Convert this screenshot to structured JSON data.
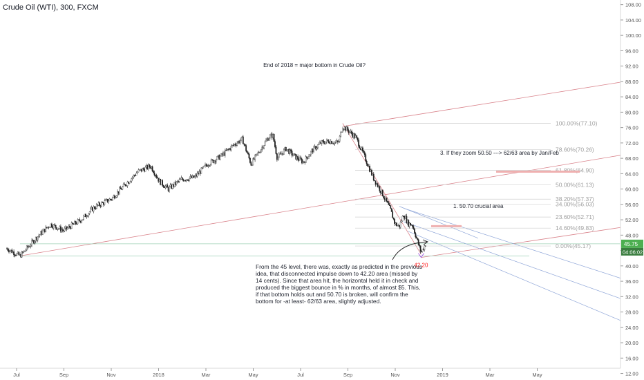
{
  "chart_data": {
    "type": "candlestick",
    "symbol_title": "Crude Oil (WTI), 300, FXCM",
    "y_axis_ticks": [
      108,
      104,
      100,
      96,
      92,
      88,
      84,
      80,
      76,
      72,
      68,
      64,
      60,
      56,
      52,
      48,
      44,
      40,
      36,
      32,
      28,
      24,
      20,
      16,
      12
    ],
    "ylim": [
      10.3,
      109.2
    ],
    "x_axis_ticks": [
      "Jul",
      "Sep",
      "Nov",
      "2018",
      "Mar",
      "May",
      "Jul",
      "Sep",
      "Nov",
      "2019",
      "Mar",
      "May"
    ],
    "price_profile": [
      [
        0,
        44.5
      ],
      [
        3,
        42.6
      ],
      [
        7,
        47.6
      ],
      [
        10,
        50.8
      ],
      [
        13,
        49.2
      ],
      [
        17,
        52.0
      ],
      [
        20,
        55.2
      ],
      [
        24,
        57.5
      ],
      [
        27,
        61.0
      ],
      [
        30,
        64.5
      ],
      [
        33,
        66.0
      ],
      [
        35,
        62.0
      ],
      [
        37,
        60.0
      ],
      [
        40,
        62.5
      ],
      [
        43,
        63.0
      ],
      [
        46,
        66.5
      ],
      [
        49,
        68.5
      ],
      [
        52,
        71.5
      ],
      [
        54,
        73.0
      ],
      [
        56,
        66.5
      ],
      [
        58,
        70.0
      ],
      [
        60,
        73.5
      ],
      [
        61,
        74.0
      ],
      [
        62,
        68.0
      ],
      [
        64,
        70.5
      ],
      [
        66,
        68.5
      ],
      [
        68,
        67.0
      ],
      [
        70,
        70.0
      ],
      [
        72,
        72.0
      ],
      [
        74,
        72.5
      ],
      [
        76,
        72.0
      ],
      [
        77,
        76.3
      ],
      [
        78,
        75.5
      ],
      [
        80,
        73.5
      ],
      [
        82,
        68.5
      ],
      [
        84,
        63.0
      ],
      [
        86,
        59.0
      ],
      [
        88,
        54.5
      ],
      [
        89,
        51.0
      ],
      [
        90,
        50.2
      ],
      [
        91,
        53.5
      ],
      [
        92,
        51.0
      ],
      [
        93,
        50.7
      ],
      [
        94,
        47.0
      ],
      [
        95,
        43.5
      ],
      [
        96,
        45.7
      ]
    ],
    "last_price": 45.75,
    "last_price_color": "#4caf50",
    "countdown": "04:06:02",
    "fibonacci": [
      {
        "label": "100.00%(77.10)",
        "value": 77.1
      },
      {
        "label": "78.60%(70.26)",
        "value": 70.26
      },
      {
        "label": "61.80%(64.90)",
        "value": 64.9
      },
      {
        "label": "50.00%(61.13)",
        "value": 61.13
      },
      {
        "label": "38.20%(57.37)",
        "value": 57.37
      },
      {
        "label": "34.00%(56.03)",
        "value": 56.03
      },
      {
        "label": "23.60%(52.71)",
        "value": 52.71
      },
      {
        "label": "14.60%(49.83)",
        "value": 49.83
      },
      {
        "label": "0.00%(45.17)",
        "value": 45.17
      }
    ],
    "low_label": "42.20",
    "low_value": 42.2,
    "annotations": {
      "headline": "End of 2018 = major bottom in Crude Oil?",
      "target": "3. If they zoom 50.50 ---> 62/63 area by Jan/Feb",
      "crucial": "1. 50.70 crucial area",
      "commentary": "From the 45 level, there was, exactly as predicted in the previous idea, that disconnected impulse down to 42.20 area (missed by 14 cents). Since that area hit, the horizontal held it in check and produced the biggest bounce in % in months, of almost $5. This, if that bottom holds out and 50.70 is broken, will confirm the bottom for -at least- 62/63 area, slightly adjusted."
    },
    "colors": {
      "candle_up": "#444444",
      "candle_down": "#222222",
      "trendline": "#d9828a",
      "channel": "#8fa6d8",
      "horizontal": "#9ccfb4",
      "fib": "#cfcfcf",
      "zone": "#efb0b0",
      "low_text": "#ff2020"
    }
  }
}
